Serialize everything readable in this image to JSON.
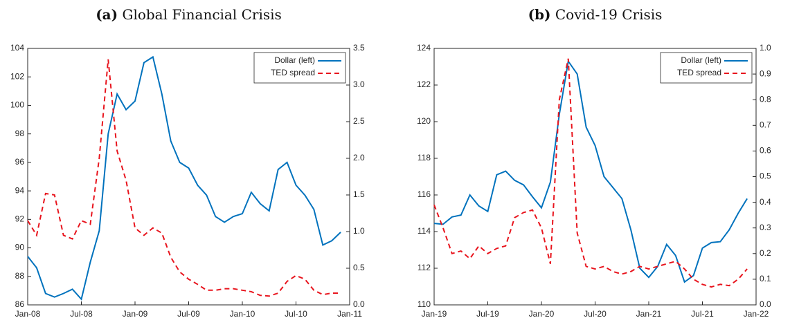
{
  "chart_data": [
    {
      "type": "line",
      "label": "(a)",
      "title": "Global Financial Crisis",
      "x": [
        "Jan-08",
        "Feb-08",
        "Mar-08",
        "Apr-08",
        "May-08",
        "Jun-08",
        "Jul-08",
        "Aug-08",
        "Sep-08",
        "Oct-08",
        "Nov-08",
        "Dec-08",
        "Jan-09",
        "Feb-09",
        "Mar-09",
        "Apr-09",
        "May-09",
        "Jun-09",
        "Jul-09",
        "Aug-09",
        "Sep-09",
        "Oct-09",
        "Nov-09",
        "Dec-09",
        "Jan-10",
        "Feb-10",
        "Mar-10",
        "Apr-10",
        "May-10",
        "Jun-10",
        "Jul-10",
        "Aug-10",
        "Sep-10",
        "Oct-10",
        "Nov-10",
        "Dec-10"
      ],
      "xlim": [
        "Jan-08",
        "Jan-11"
      ],
      "xticks": [
        "Jan-08",
        "Jul-08",
        "Jan-09",
        "Jul-09",
        "Jan-10",
        "Jul-10",
        "Jan-11"
      ],
      "ylim": [
        86,
        104
      ],
      "yticks": [
        86,
        88,
        90,
        92,
        94,
        96,
        98,
        100,
        102,
        104
      ],
      "y2lim": [
        0,
        3.5
      ],
      "y2ticks": [
        {
          "value": 0,
          "label": "0.0"
        },
        0.5,
        {
          "value": 1,
          "label": "1.0"
        },
        1.5,
        {
          "value": 2,
          "label": "2.0"
        },
        2.5,
        {
          "value": 3,
          "label": "3.0"
        },
        3.5
      ],
      "legend": "northeast",
      "series": [
        {
          "name": "Dollar (left)",
          "color": "#0072bd",
          "dash": false,
          "values": [
            89.4,
            88.6,
            86.8,
            86.55,
            86.8,
            87.1,
            86.4,
            89,
            91.2,
            98,
            100.8,
            99.7,
            100.3,
            103,
            103.4,
            100.8,
            97.5,
            96,
            95.6,
            94.4,
            93.7,
            92.2,
            91.8,
            92.2,
            92.4,
            93.9,
            93.1,
            92.6,
            95.5,
            96,
            94.4,
            93.7,
            92.7,
            90.2,
            90.5,
            91.1
          ]
        },
        {
          "name": "TED spread",
          "color": "#e8141d",
          "dash": true,
          "axis": "y2",
          "values": [
            1.15,
            0.95,
            1.52,
            1.5,
            0.95,
            0.9,
            1.15,
            1.1,
            2.0,
            3.35,
            2.1,
            1.7,
            1.05,
            0.95,
            1.05,
            0.98,
            0.65,
            0.45,
            0.35,
            0.28,
            0.2,
            0.2,
            0.22,
            0.22,
            0.2,
            0.18,
            0.13,
            0.12,
            0.16,
            0.32,
            0.4,
            0.35,
            0.2,
            0.14,
            0.16,
            0.16
          ]
        }
      ]
    },
    {
      "type": "line",
      "label": "(b)",
      "title": "Covid-19 Crisis",
      "x": [
        "Jan-19",
        "Feb-19",
        "Mar-19",
        "Apr-19",
        "May-19",
        "Jun-19",
        "Jul-19",
        "Aug-19",
        "Sep-19",
        "Oct-19",
        "Nov-19",
        "Dec-19",
        "Jan-20",
        "Feb-20",
        "Mar-20",
        "Apr-20",
        "May-20",
        "Jun-20",
        "Jul-20",
        "Aug-20",
        "Sep-20",
        "Oct-20",
        "Nov-20",
        "Dec-20",
        "Jan-21",
        "Feb-21",
        "Mar-21",
        "Apr-21",
        "May-21",
        "Jun-21",
        "Jul-21",
        "Aug-21",
        "Sep-21",
        "Oct-21",
        "Nov-21",
        "Dec-21"
      ],
      "xlim": [
        "Jan-19",
        "Jan-22"
      ],
      "xticks": [
        "Jan-19",
        "Jul-19",
        "Jan-20",
        "Jul-20",
        "Jan-21",
        "Jul-21",
        "Jan-22"
      ],
      "ylim": [
        110,
        124
      ],
      "yticks": [
        110,
        112,
        114,
        116,
        118,
        120,
        122,
        124
      ],
      "y2lim": [
        0,
        1
      ],
      "y2ticks": [
        {
          "value": 0,
          "label": "0.0"
        },
        0.1,
        0.2,
        0.3,
        0.4,
        0.5,
        0.6,
        0.7,
        0.8,
        0.9,
        {
          "value": 1,
          "label": "1.0"
        }
      ],
      "legend": "northeast",
      "series": [
        {
          "name": "Dollar (left)",
          "color": "#0072bd",
          "dash": false,
          "values": [
            114.45,
            114.4,
            114.8,
            114.9,
            116,
            115.4,
            115.1,
            117.1,
            117.3,
            116.8,
            116.55,
            115.9,
            115.3,
            116.7,
            120.4,
            123.3,
            122.6,
            119.7,
            118.7,
            117,
            116.4,
            115.8,
            114.1,
            112,
            111.5,
            112.1,
            113.3,
            112.7,
            111.25,
            111.6,
            113.1,
            113.4,
            113.45,
            114.1,
            115,
            115.8
          ]
        },
        {
          "name": "TED spread",
          "color": "#e8141d",
          "dash": true,
          "axis": "y2",
          "values": [
            0.39,
            0.3,
            0.2,
            0.21,
            0.18,
            0.23,
            0.2,
            0.22,
            0.23,
            0.34,
            0.36,
            0.37,
            0.3,
            0.16,
            0.8,
            0.96,
            0.28,
            0.15,
            0.14,
            0.15,
            0.13,
            0.12,
            0.13,
            0.15,
            0.14,
            0.15,
            0.16,
            0.17,
            0.14,
            0.1,
            0.08,
            0.07,
            0.08,
            0.075,
            0.1,
            0.14
          ]
        }
      ]
    }
  ]
}
